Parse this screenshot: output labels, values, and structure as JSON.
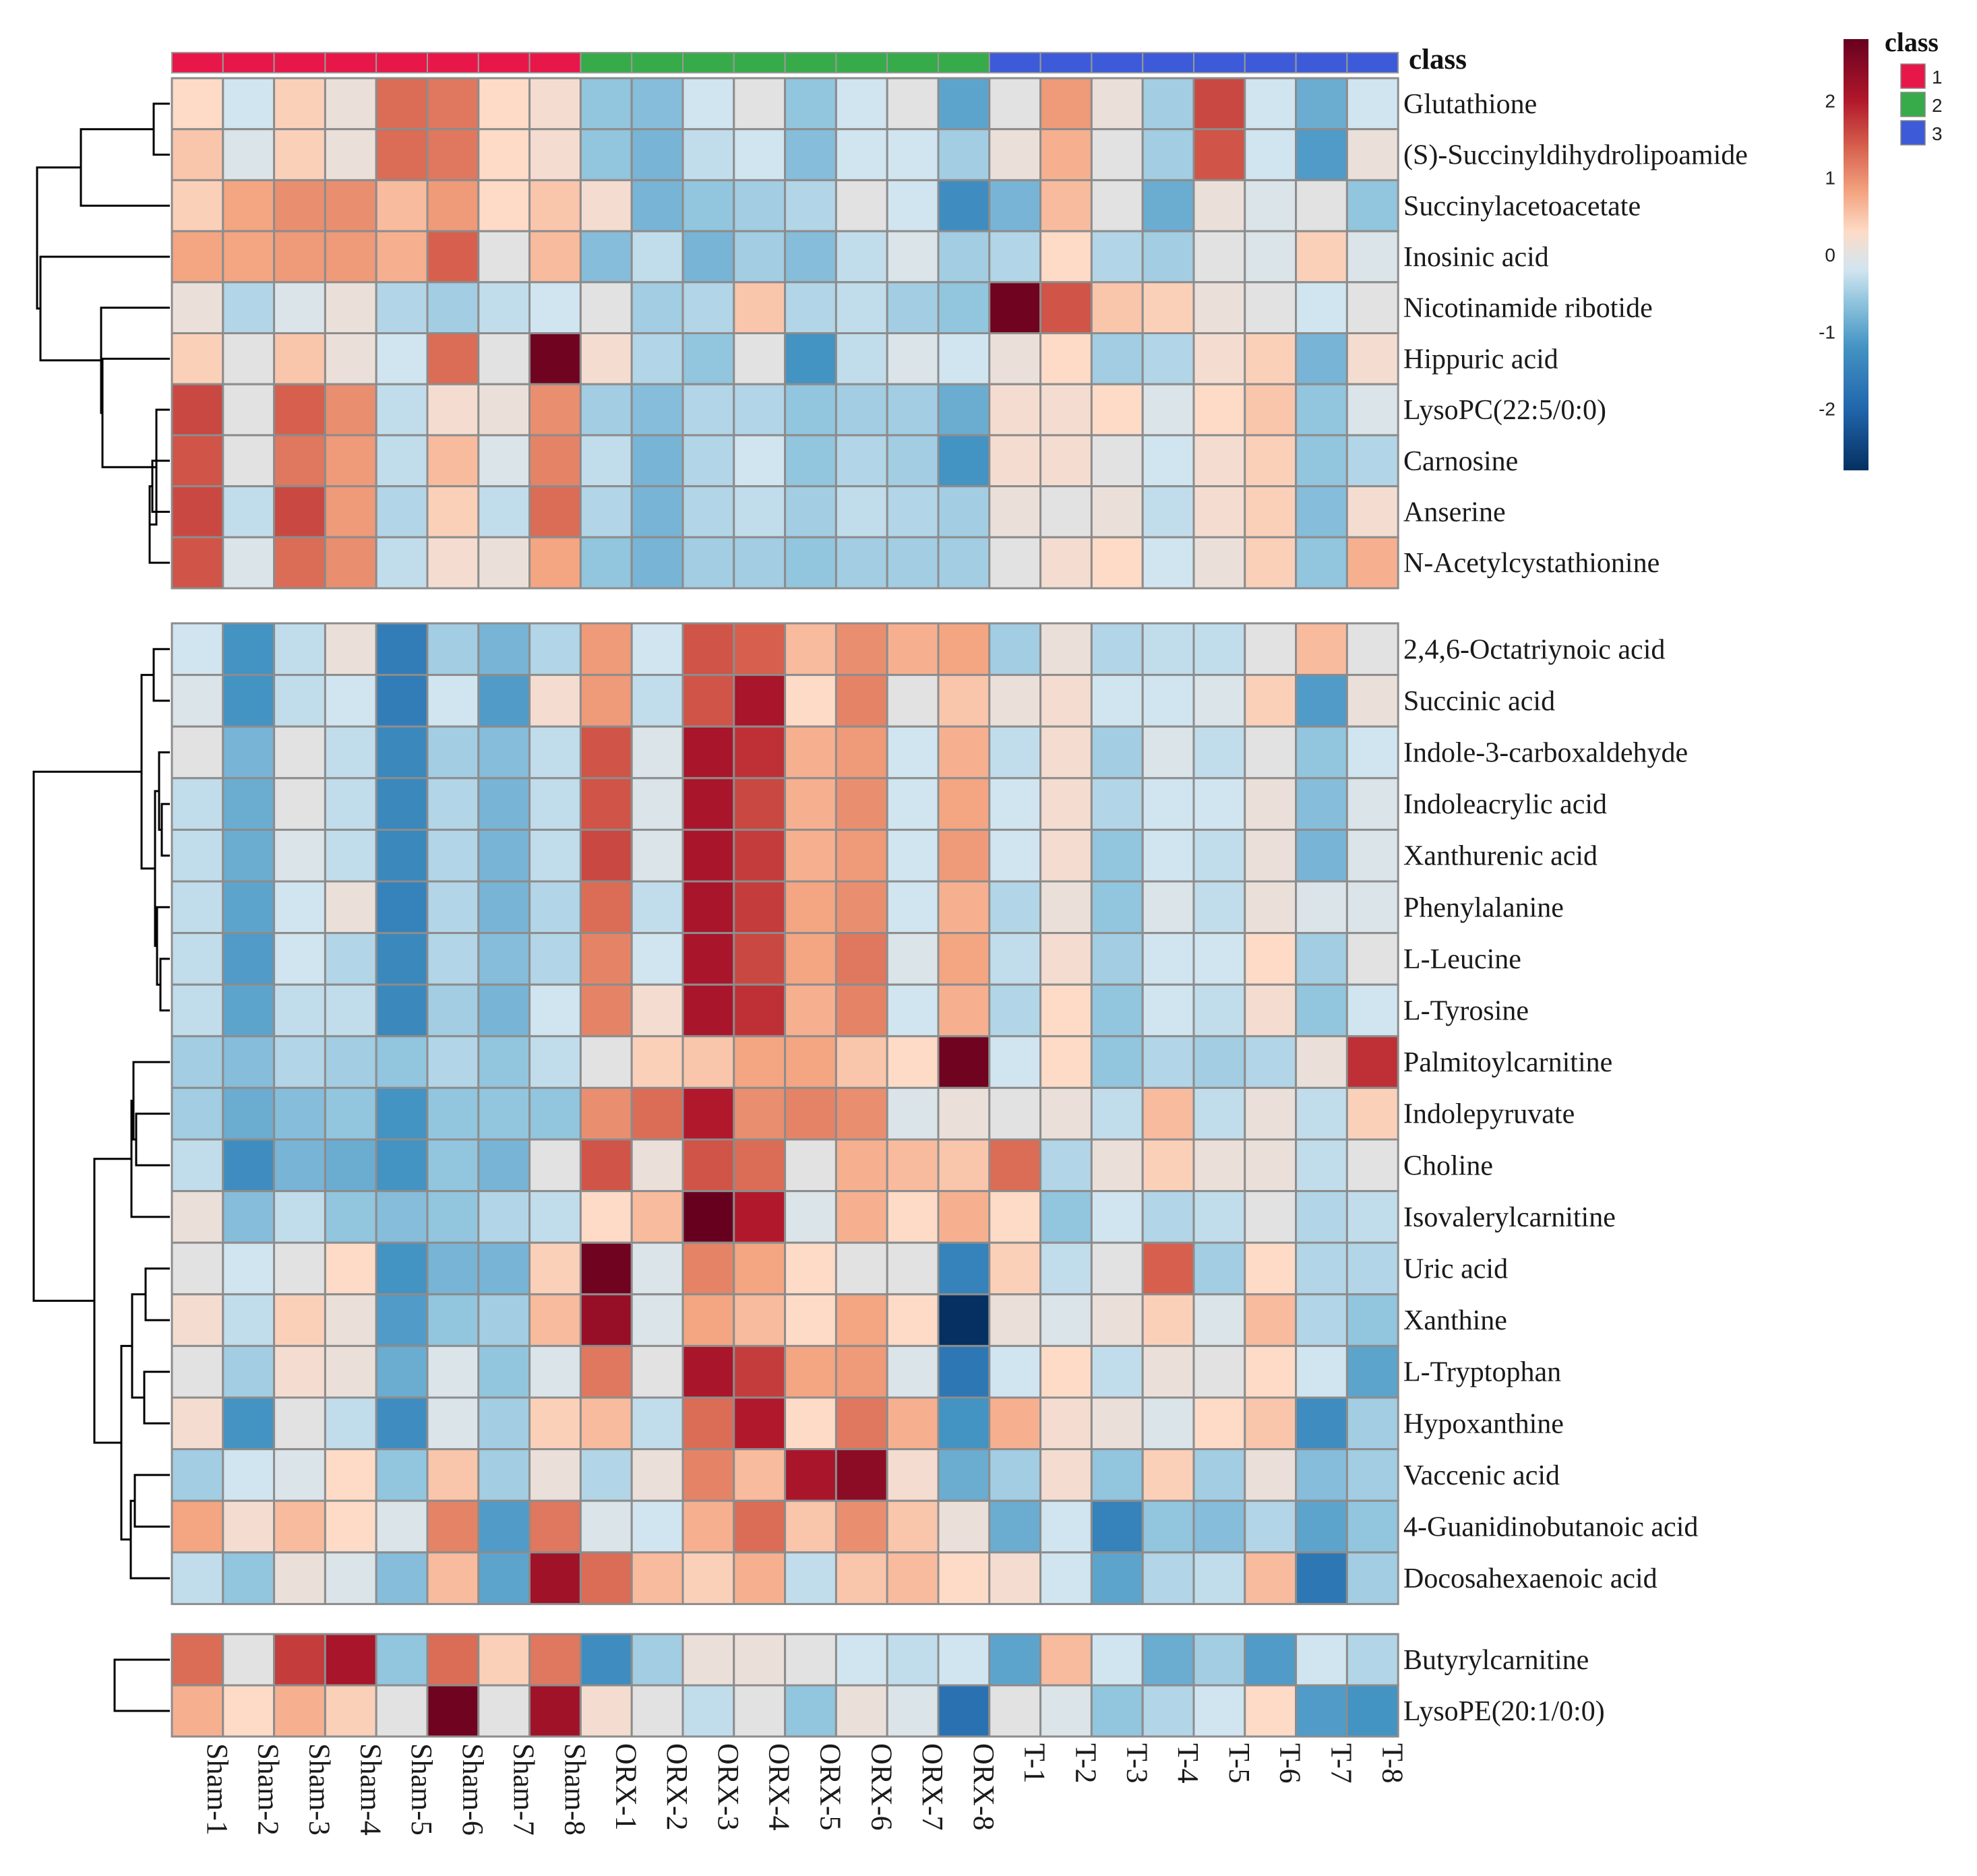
{
  "chart_data": {
    "type": "heatmap",
    "title": "",
    "legend": {
      "title": "class",
      "entries": [
        {
          "label": "1",
          "color": "#e8174a"
        },
        {
          "label": "2",
          "color": "#37ab4a"
        },
        {
          "label": "3",
          "color": "#3d5bd9"
        }
      ]
    },
    "colorbar": {
      "ticks": [
        2,
        1,
        0,
        -1,
        -2
      ],
      "tick_labels": [
        "2",
        "1",
        "0",
        "-1",
        "-2"
      ],
      "range": [
        -2.8,
        2.8
      ],
      "stops": [
        {
          "value": -2.8,
          "color": "#053061"
        },
        {
          "value": -2.0,
          "color": "#2166ac"
        },
        {
          "value": -1.2,
          "color": "#4393c3"
        },
        {
          "value": -0.6,
          "color": "#92c5de"
        },
        {
          "value": -0.2,
          "color": "#d1e5f0"
        },
        {
          "value": 0.0,
          "color": "#e2e2e2"
        },
        {
          "value": 0.3,
          "color": "#fddbc7"
        },
        {
          "value": 0.8,
          "color": "#f4a582"
        },
        {
          "value": 1.4,
          "color": "#d6604d"
        },
        {
          "value": 2.0,
          "color": "#b2182b"
        },
        {
          "value": 2.8,
          "color": "#67001f"
        }
      ]
    },
    "class_bar_label": "class",
    "class_colors": {
      "1": "#e8174a",
      "2": "#37ab4a",
      "3": "#3d5bd9"
    },
    "columns": [
      "Sham-1",
      "Sham-2",
      "Sham-3",
      "Sham-4",
      "Sham-5",
      "Sham-6",
      "Sham-7",
      "Sham-8",
      "ORX-1",
      "ORX-2",
      "ORX-3",
      "ORX-4",
      "ORX-5",
      "ORX-6",
      "ORX-7",
      "ORX-8",
      "T-1",
      "T-2",
      "T-3",
      "T-4",
      "T-5",
      "T-6",
      "T-7",
      "T-8"
    ],
    "column_classes": [
      "1",
      "1",
      "1",
      "1",
      "1",
      "1",
      "1",
      "1",
      "2",
      "2",
      "2",
      "2",
      "2",
      "2",
      "2",
      "2",
      "3",
      "3",
      "3",
      "3",
      "3",
      "3",
      "3",
      "3"
    ],
    "blocks": [
      {
        "rows": [
          "Glutathione",
          "(S)-Succinyldihydrolipoamide",
          "Succinylacetoacetate",
          "Inosinic acid",
          "Nicotinamide ribotide",
          "Hippuric acid",
          "LysoPC(22:5/0:0)",
          "Carnosine",
          "Anserine",
          "N-Acetylcystathionine"
        ],
        "values": [
          [
            0.3,
            -0.2,
            0.4,
            0.1,
            1.3,
            1.2,
            0.3,
            0.2,
            -0.6,
            -0.7,
            -0.2,
            0.0,
            -0.6,
            -0.2,
            0.0,
            -1.0,
            0.0,
            0.9,
            0.1,
            -0.5,
            1.6,
            -0.2,
            -0.9,
            -0.2
          ],
          [
            0.5,
            -0.1,
            0.4,
            0.1,
            1.3,
            1.2,
            0.3,
            0.2,
            -0.6,
            -0.8,
            -0.3,
            -0.2,
            -0.7,
            -0.2,
            -0.2,
            -0.5,
            0.1,
            0.7,
            0.0,
            -0.5,
            1.5,
            -0.2,
            -1.1,
            0.1
          ],
          [
            0.4,
            0.8,
            1.0,
            1.0,
            0.6,
            0.9,
            0.3,
            0.5,
            0.2,
            -0.8,
            -0.6,
            -0.5,
            -0.4,
            0.0,
            -0.2,
            -1.3,
            -0.8,
            0.6,
            0.0,
            -0.9,
            0.1,
            -0.1,
            0.0,
            -0.6
          ],
          [
            0.8,
            0.8,
            0.9,
            0.9,
            0.7,
            1.4,
            0.0,
            0.6,
            -0.7,
            -0.3,
            -0.8,
            -0.5,
            -0.7,
            -0.3,
            -0.1,
            -0.5,
            -0.4,
            0.3,
            -0.4,
            -0.5,
            0.0,
            -0.1,
            0.4,
            -0.1
          ],
          [
            0.1,
            -0.4,
            -0.1,
            0.1,
            -0.4,
            -0.5,
            -0.3,
            -0.2,
            0.0,
            -0.5,
            -0.4,
            0.5,
            -0.4,
            -0.3,
            -0.5,
            -0.6,
            2.7,
            1.5,
            0.5,
            0.4,
            0.1,
            0.0,
            -0.2,
            0.0
          ],
          [
            0.4,
            0.0,
            0.5,
            0.1,
            -0.2,
            1.3,
            0.0,
            2.7,
            0.2,
            -0.4,
            -0.6,
            0.0,
            -1.2,
            -0.3,
            -0.1,
            -0.2,
            0.1,
            0.3,
            -0.5,
            -0.4,
            0.2,
            0.4,
            -0.8,
            0.2
          ],
          [
            1.6,
            0.0,
            1.4,
            1.0,
            -0.3,
            0.2,
            0.1,
            1.0,
            -0.5,
            -0.7,
            -0.4,
            -0.4,
            -0.6,
            -0.5,
            -0.5,
            -0.9,
            0.2,
            0.2,
            0.3,
            -0.1,
            0.3,
            0.5,
            -0.6,
            -0.1
          ],
          [
            1.5,
            0.0,
            1.2,
            0.9,
            -0.3,
            0.6,
            -0.1,
            1.1,
            -0.3,
            -0.8,
            -0.4,
            -0.2,
            -0.6,
            -0.4,
            -0.5,
            -1.2,
            0.2,
            0.2,
            0.0,
            -0.2,
            0.2,
            0.4,
            -0.6,
            -0.4
          ],
          [
            1.6,
            -0.3,
            1.6,
            0.9,
            -0.4,
            0.4,
            -0.3,
            1.3,
            -0.4,
            -0.8,
            -0.4,
            -0.3,
            -0.5,
            -0.3,
            -0.4,
            -0.5,
            0.1,
            0.0,
            0.1,
            -0.3,
            0.2,
            0.4,
            -0.7,
            0.2
          ],
          [
            1.5,
            -0.1,
            1.3,
            1.0,
            -0.3,
            0.2,
            0.1,
            0.8,
            -0.6,
            -0.8,
            -0.5,
            -0.5,
            -0.6,
            -0.5,
            -0.5,
            -0.5,
            0.0,
            0.2,
            0.3,
            -0.2,
            0.1,
            0.4,
            -0.6,
            0.7
          ]
        ]
      },
      {
        "rows": [
          "2,4,6-Octatriynoic acid",
          "Succinic acid",
          "Indole-3-carboxaldehyde",
          "Indoleacrylic acid",
          "Xanthurenic acid",
          "Phenylalanine",
          "L-Leucine",
          "L-Tyrosine",
          "Palmitoylcarnitine",
          "Indolepyruvate",
          "Choline",
          "Isovalerylcarnitine",
          "Uric acid",
          "Xanthine",
          "L-Tryptophan",
          "Hypoxanthine",
          "Vaccenic acid",
          "4-Guanidinobutanoic acid",
          "Docosahexaenoic acid"
        ],
        "values": [
          [
            -0.2,
            -1.2,
            -0.3,
            0.1,
            -1.6,
            -0.5,
            -0.8,
            -0.4,
            0.9,
            -0.2,
            1.5,
            1.4,
            0.6,
            1.0,
            0.7,
            0.8,
            -0.5,
            0.1,
            -0.4,
            -0.3,
            -0.3,
            0.0,
            0.6,
            0.0
          ],
          [
            -0.1,
            -1.2,
            -0.3,
            -0.2,
            -1.6,
            -0.2,
            -1.1,
            0.2,
            0.9,
            -0.3,
            1.5,
            2.1,
            0.3,
            1.1,
            0.0,
            0.5,
            0.1,
            0.2,
            -0.2,
            -0.2,
            -0.1,
            0.4,
            -1.1,
            0.1
          ],
          [
            0.0,
            -0.8,
            0.0,
            -0.3,
            -1.4,
            -0.5,
            -0.7,
            -0.3,
            1.5,
            -0.1,
            2.1,
            1.8,
            0.7,
            0.9,
            -0.2,
            0.7,
            -0.3,
            0.2,
            -0.5,
            -0.1,
            -0.3,
            0.0,
            -0.6,
            -0.2
          ],
          [
            -0.3,
            -0.9,
            0.0,
            -0.3,
            -1.4,
            -0.4,
            -0.8,
            -0.3,
            1.5,
            -0.1,
            2.1,
            1.6,
            0.7,
            1.0,
            -0.2,
            0.8,
            -0.2,
            0.2,
            -0.4,
            -0.2,
            -0.2,
            0.1,
            -0.7,
            -0.1
          ],
          [
            -0.3,
            -0.9,
            -0.1,
            -0.3,
            -1.4,
            -0.4,
            -0.8,
            -0.3,
            1.6,
            -0.1,
            2.1,
            1.7,
            0.7,
            0.9,
            -0.2,
            0.9,
            -0.2,
            0.2,
            -0.6,
            -0.2,
            -0.3,
            0.1,
            -0.8,
            -0.1
          ],
          [
            -0.3,
            -1.0,
            -0.2,
            0.1,
            -1.5,
            -0.4,
            -0.8,
            -0.4,
            1.3,
            -0.3,
            2.1,
            1.7,
            0.8,
            1.0,
            -0.2,
            0.7,
            -0.4,
            0.1,
            -0.6,
            -0.1,
            -0.3,
            0.1,
            -0.1,
            -0.1
          ],
          [
            -0.3,
            -1.1,
            -0.2,
            -0.4,
            -1.4,
            -0.4,
            -0.7,
            -0.4,
            1.1,
            -0.2,
            2.1,
            1.6,
            0.8,
            1.2,
            -0.1,
            0.8,
            -0.3,
            0.2,
            -0.5,
            -0.2,
            -0.2,
            0.3,
            -0.5,
            0.0
          ],
          [
            -0.3,
            -1.0,
            -0.3,
            -0.3,
            -1.4,
            -0.5,
            -0.8,
            -0.2,
            1.1,
            0.2,
            2.1,
            1.8,
            0.7,
            1.1,
            -0.2,
            0.7,
            -0.4,
            0.3,
            -0.6,
            -0.2,
            -0.3,
            0.2,
            -0.6,
            -0.2
          ],
          [
            -0.5,
            -0.7,
            -0.4,
            -0.5,
            -0.6,
            -0.4,
            -0.6,
            -0.3,
            0.0,
            0.4,
            0.5,
            0.8,
            0.8,
            0.5,
            0.3,
            2.7,
            -0.2,
            0.3,
            -0.6,
            -0.4,
            -0.5,
            -0.4,
            0.1,
            1.8
          ],
          [
            -0.5,
            -0.9,
            -0.7,
            -0.6,
            -1.2,
            -0.6,
            -0.6,
            -0.6,
            1.0,
            1.3,
            2.0,
            1.0,
            1.1,
            1.0,
            -0.1,
            0.1,
            0.0,
            0.1,
            -0.3,
            0.6,
            -0.3,
            0.1,
            -0.3,
            0.4
          ],
          [
            -0.3,
            -1.3,
            -0.8,
            -0.9,
            -1.2,
            -0.6,
            -0.8,
            0.0,
            1.5,
            0.1,
            1.5,
            1.3,
            0.0,
            0.7,
            0.6,
            0.5,
            1.3,
            -0.4,
            0.1,
            0.4,
            0.1,
            0.1,
            -0.3,
            0.0
          ],
          [
            0.1,
            -0.7,
            -0.3,
            -0.6,
            -0.7,
            -0.6,
            -0.4,
            -0.3,
            0.3,
            0.6,
            2.8,
            2.0,
            -0.1,
            0.7,
            0.3,
            0.7,
            0.3,
            -0.6,
            -0.2,
            -0.4,
            -0.3,
            0.0,
            -0.4,
            -0.3
          ],
          [
            0.0,
            -0.2,
            0.0,
            0.3,
            -1.2,
            -0.8,
            -0.8,
            0.4,
            2.7,
            -0.1,
            1.1,
            0.8,
            0.3,
            0.0,
            0.0,
            -1.5,
            0.4,
            -0.3,
            0.0,
            1.4,
            -0.5,
            0.3,
            -0.4,
            -0.4
          ],
          [
            0.2,
            -0.3,
            0.4,
            0.1,
            -1.1,
            -0.6,
            -0.5,
            0.6,
            2.3,
            -0.1,
            0.8,
            0.6,
            0.3,
            0.8,
            0.3,
            -2.8,
            0.1,
            -0.1,
            0.1,
            0.4,
            -0.1,
            0.6,
            -0.4,
            -0.6
          ],
          [
            0.0,
            -0.5,
            0.2,
            0.1,
            -0.9,
            -0.1,
            -0.6,
            -0.1,
            1.2,
            0.0,
            2.1,
            1.7,
            0.8,
            0.9,
            -0.1,
            -1.7,
            -0.2,
            0.3,
            -0.3,
            0.1,
            0.0,
            0.3,
            -0.2,
            -1.0
          ],
          [
            0.2,
            -1.2,
            0.0,
            -0.3,
            -1.3,
            -0.1,
            -0.5,
            0.4,
            0.6,
            -0.3,
            1.3,
            2.0,
            0.3,
            1.2,
            0.7,
            -1.2,
            0.7,
            0.2,
            0.1,
            -0.1,
            0.3,
            0.5,
            -1.3,
            -0.5
          ],
          [
            -0.5,
            -0.2,
            -0.1,
            0.3,
            -0.6,
            0.5,
            -0.5,
            0.1,
            -0.4,
            0.1,
            1.1,
            0.6,
            2.1,
            2.4,
            0.2,
            -0.9,
            -0.5,
            0.2,
            -0.6,
            0.4,
            -0.5,
            0.1,
            -0.7,
            -0.5
          ],
          [
            0.8,
            0.2,
            0.6,
            0.3,
            -0.1,
            1.1,
            -1.1,
            1.2,
            -0.1,
            -0.2,
            0.7,
            1.3,
            0.5,
            1.0,
            0.5,
            0.1,
            -0.9,
            -0.2,
            -1.5,
            -0.6,
            -0.7,
            -0.4,
            -1.0,
            -0.6
          ],
          [
            -0.3,
            -0.6,
            0.1,
            -0.1,
            -0.7,
            0.6,
            -1.0,
            2.2,
            1.3,
            0.6,
            0.4,
            0.7,
            -0.3,
            0.5,
            0.6,
            0.3,
            0.2,
            -0.2,
            -1.0,
            -0.4,
            -0.3,
            0.6,
            -1.7,
            -0.5
          ]
        ]
      },
      {
        "rows": [
          "Butyrylcarnitine",
          "LysoPE(20:1/0:0)"
        ],
        "values": [
          [
            1.3,
            0.0,
            1.7,
            2.1,
            -0.6,
            1.3,
            0.4,
            1.2,
            -1.3,
            -0.5,
            0.1,
            0.1,
            0.0,
            -0.2,
            -0.3,
            -0.2,
            -1.0,
            0.6,
            -0.2,
            -0.9,
            -0.5,
            -1.1,
            -0.2,
            -0.4
          ],
          [
            0.7,
            0.3,
            0.7,
            0.4,
            0.0,
            2.7,
            0.0,
            2.2,
            0.2,
            0.0,
            -0.3,
            0.0,
            -0.6,
            0.1,
            -0.1,
            -1.8,
            0.0,
            -0.1,
            -0.6,
            -0.4,
            -0.2,
            0.3,
            -1.1,
            -1.2
          ]
        ]
      }
    ]
  }
}
